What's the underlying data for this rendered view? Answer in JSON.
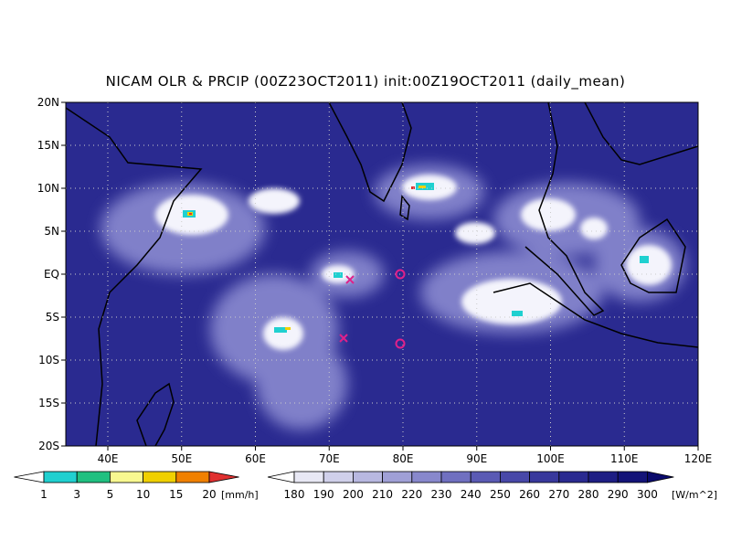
{
  "title": "NICAM OLR & PRCIP (00Z23OCT2011) init:00Z19OCT2011 (daily_mean)",
  "map": {
    "lon_labels": [
      "40E",
      "50E",
      "60E",
      "70E",
      "80E",
      "90E",
      "100E",
      "110E",
      "120E"
    ],
    "lat_labels": [
      "20N",
      "15N",
      "10N",
      "5N",
      "EQ",
      "5S",
      "10S",
      "15S",
      "20S"
    ]
  },
  "precip_colorbar": {
    "labels": [
      "1",
      "3",
      "5",
      "10",
      "15",
      "20"
    ],
    "unit": "[mm/h]",
    "colors": [
      "#ffffff",
      "#20d0d0",
      "#20c080",
      "#f8f890",
      "#f0d000",
      "#f08000",
      "#e03030"
    ]
  },
  "olr_colorbar": {
    "labels": [
      "180",
      "190",
      "200",
      "210",
      "220",
      "230",
      "240",
      "250",
      "260",
      "270",
      "280",
      "290",
      "300"
    ],
    "unit": "[W/m^2]",
    "colors": [
      "#ffffff",
      "#e8e8f4",
      "#d0d0ea",
      "#b8b8e0",
      "#a0a0d6",
      "#8888cc",
      "#7070c0",
      "#5a5ab4",
      "#4848a8",
      "#38389c",
      "#2a2a90",
      "#1e1e84",
      "#141478",
      "#0a0a6c"
    ]
  }
}
